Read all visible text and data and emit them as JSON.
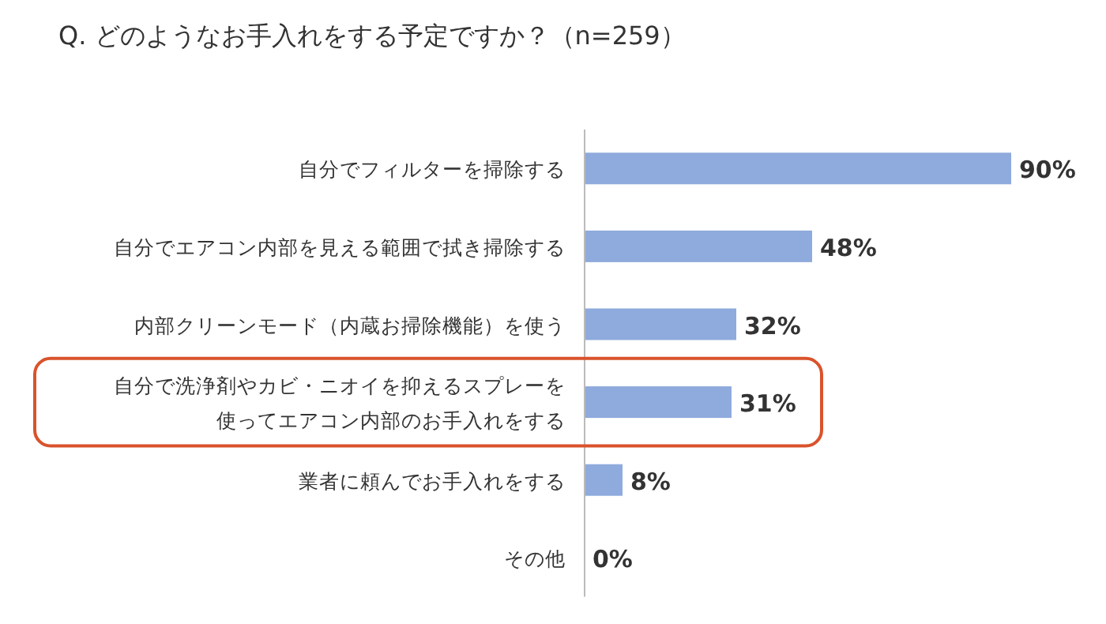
{
  "chart_data": {
    "type": "bar",
    "orientation": "horizontal",
    "title": "Q. どのようなお手入れをする予定ですか？（n=259）",
    "categories": [
      "自分でフィルターを掃除する",
      "自分でエアコン内部を見える範囲で拭き掃除する",
      "内部クリーンモード（内蔵お掃除機能）を使う",
      "自分で洗浄剤やカビ・ニオイを抑えるスプレーを使ってエアコン内部のお手入れをする",
      "業者に頼んでお手入れをする",
      "その他"
    ],
    "values": [
      90,
      48,
      32,
      31,
      8,
      0
    ],
    "value_labels": [
      "90%",
      "48%",
      "32%",
      "31%",
      "8%",
      "0%"
    ],
    "color": "#8faadc"
  }
}
